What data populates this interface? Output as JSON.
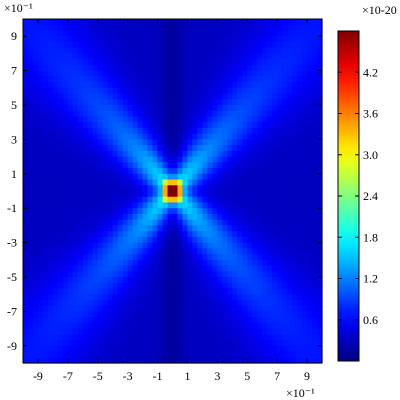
{
  "chart_data": {
    "type": "heatmap",
    "x_exponent_label": "×10⁻¹",
    "y_exponent_label": "×10⁻¹",
    "colorbar_exponent_label": "×10-20",
    "x_ticks": [
      "-9",
      "-7",
      "-5",
      "-3",
      "-1",
      "1",
      "3",
      "5",
      "7",
      "9"
    ],
    "y_ticks": [
      "9",
      "7",
      "5",
      "3",
      "1",
      "-1",
      "-3",
      "-5",
      "-7",
      "-9"
    ],
    "x_tick_values": [
      -0.9,
      -0.7,
      -0.5,
      -0.3,
      -0.1,
      0.1,
      0.3,
      0.5,
      0.7,
      0.9
    ],
    "y_tick_values": [
      0.9,
      0.7,
      0.5,
      0.3,
      0.1,
      -0.1,
      -0.3,
      -0.5,
      -0.7,
      -0.9
    ],
    "xlim": [
      -1.0,
      1.0
    ],
    "ylim": [
      -1.0,
      1.0
    ],
    "colorbar_ticks": [
      "4.2",
      "3.6",
      "3.0",
      "2.4",
      "1.8",
      "1.2",
      "0.6"
    ],
    "colorbar_tick_values": [
      4.2,
      3.6,
      3.0,
      2.4,
      1.8,
      1.2,
      0.6
    ],
    "color_range": [
      0.0,
      4.8
    ],
    "colormap": "jet",
    "grid_resolution": 60,
    "field": {
      "peak_value": 4.8,
      "peak_location": [
        0.0,
        0.0
      ],
      "background_value": 0.3,
      "center_column_value": 0.05,
      "ray_directions_deg": [
        45,
        135,
        225,
        315
      ],
      "ray_strength": 0.9
    }
  },
  "colors": {
    "background": "#ffffff",
    "axis": "#000000"
  }
}
